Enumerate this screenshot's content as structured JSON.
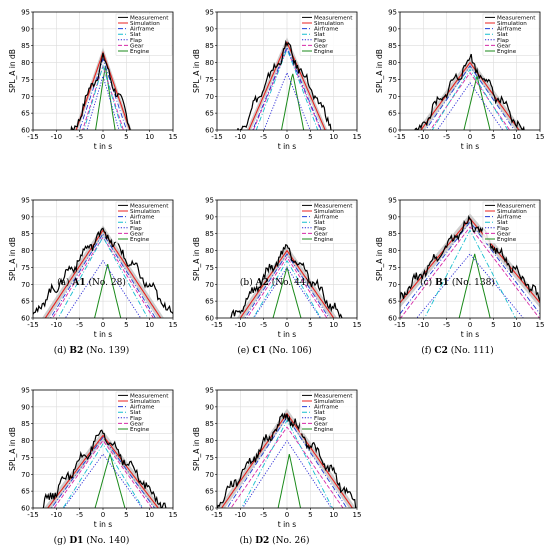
{
  "legend": {
    "entries": [
      {
        "name": "Measurement",
        "color": "#000000",
        "dash": "solid"
      },
      {
        "name": "Simulation",
        "color": "#e8221f",
        "dash": "solid"
      },
      {
        "name": "Airframe",
        "color": "#1f3fd6",
        "dash": "dashdot"
      },
      {
        "name": "Slat",
        "color": "#17becf",
        "dash": "dashdot"
      },
      {
        "name": "Flap",
        "color": "#2b2bd6",
        "dash": "dotted"
      },
      {
        "name": "Gear",
        "color": "#d62aa8",
        "dash": "dashed"
      },
      {
        "name": "Engine",
        "color": "#1a8a1a",
        "dash": "solid"
      }
    ],
    "placement": "top-right"
  },
  "band_color": "#bdbdbd",
  "axes_common": {
    "xlabel": "t in s",
    "ylabel": "SPL_A in dB",
    "xlim": [
      -15,
      15
    ],
    "ylim": [
      60,
      95
    ],
    "xticks": [
      -15,
      -10,
      -5,
      0,
      5,
      10,
      15
    ],
    "yticks": [
      60,
      65,
      70,
      75,
      80,
      85,
      90,
      95
    ],
    "grid": true
  },
  "chart_data": [
    {
      "type": "line",
      "panel": "(a)",
      "id": "A1",
      "caption_rest": "(No. 28)",
      "peaks": {
        "Measurement": 81.0,
        "Simulation": 83.0,
        "Airframe": 81.0,
        "Slat": 79.0,
        "Flap": 76.0,
        "Gear": 79.0,
        "Engine": 79.0
      },
      "halfwidth": {
        "Measurement": 6.0,
        "Simulation": 5.0,
        "Airframe": 4.8,
        "Slat": 4.3,
        "Flap": 4.3,
        "Gear": 4.6,
        "Engine": 2.2
      },
      "center": {
        "Measurement": 0,
        "Simulation": 0,
        "Airframe": 0,
        "Slat": 0,
        "Flap": 0,
        "Gear": 0,
        "Engine": 0.5
      }
    },
    {
      "type": "line",
      "panel": "(b)",
      "id": "A2",
      "caption_rest": "(No. 44)",
      "peaks": {
        "Measurement": 85.0,
        "Simulation": 86.0,
        "Airframe": 84.5,
        "Slat": 84.0,
        "Flap": 77.0,
        "Gear": 84.0,
        "Engine": 77.0
      },
      "halfwidth": {
        "Measurement": 8.0,
        "Simulation": 6.3,
        "Airframe": 6.0,
        "Slat": 5.5,
        "Flap": 5.8,
        "Gear": 6.0,
        "Engine": 2.8
      },
      "center": {
        "Measurement": 0,
        "Simulation": 0,
        "Airframe": 0,
        "Slat": 0,
        "Flap": 0,
        "Gear": 0,
        "Engine": 1.2
      }
    },
    {
      "type": "line",
      "panel": "(c)",
      "id": "B1",
      "caption_rest": "(No. 138)",
      "peaks": {
        "Measurement": 81.0,
        "Simulation": 80.0,
        "Airframe": 79.0,
        "Slat": 78.0,
        "Flap": 74.0,
        "Gear": 77.0,
        "Engine": 76.0
      },
      "halfwidth": {
        "Measurement": 10.5,
        "Simulation": 10.5,
        "Airframe": 10.0,
        "Slat": 9.0,
        "Flap": 10.0,
        "Gear": 10.0,
        "Engine": 3.5
      },
      "center": {
        "Measurement": 0,
        "Simulation": 0,
        "Airframe": 0,
        "Slat": 0,
        "Flap": 0,
        "Gear": 0,
        "Engine": 1.5
      }
    },
    {
      "type": "line",
      "panel": "(d)",
      "id": "B2",
      "caption_rest": "(No. 139)",
      "peaks": {
        "Measurement": 86.0,
        "Simulation": 86.0,
        "Airframe": 85.0,
        "Slat": 84.0,
        "Flap": 77.0,
        "Gear": 84.0,
        "Engine": 76.0
      },
      "halfwidth": {
        "Measurement": 12.0,
        "Simulation": 9.5,
        "Airframe": 9.0,
        "Slat": 8.0,
        "Flap": 9.5,
        "Gear": 9.0,
        "Engine": 3.5
      },
      "center": {
        "Measurement": 0,
        "Simulation": 0,
        "Airframe": 0,
        "Slat": 0,
        "Flap": 0,
        "Gear": 0,
        "Engine": 1.0
      }
    },
    {
      "type": "line",
      "panel": "(e)",
      "id": "C1",
      "caption_rest": "(No. 106)",
      "peaks": {
        "Measurement": 81.0,
        "Simulation": 80.0,
        "Airframe": 79.0,
        "Slat": 77.0,
        "Flap": 75.0,
        "Gear": 78.0,
        "Engine": 75.0
      },
      "halfwidth": {
        "Measurement": 11.0,
        "Simulation": 10.0,
        "Airframe": 9.5,
        "Slat": 8.5,
        "Flap": 9.5,
        "Gear": 9.5,
        "Engine": 4.0
      },
      "center": {
        "Measurement": 0,
        "Simulation": 0,
        "Airframe": 0,
        "Slat": 0,
        "Flap": 0,
        "Gear": 0,
        "Engine": 0
      }
    },
    {
      "type": "line",
      "panel": "(f)",
      "id": "C2",
      "caption_rest": "(No. 111)",
      "peaks": {
        "Measurement": 89.0,
        "Simulation": 89.5,
        "Airframe": 88.5,
        "Slat": 86.0,
        "Flap": 79.0,
        "Gear": 87.0,
        "Engine": 79.0
      },
      "halfwidth": {
        "Measurement": 13.0,
        "Simulation": 12.0,
        "Airframe": 11.0,
        "Slat": 7.5,
        "Flap": 12.0,
        "Gear": 11.0,
        "Engine": 3.5
      },
      "center": {
        "Measurement": 0,
        "Simulation": 0,
        "Airframe": 0,
        "Slat": 0,
        "Flap": 0,
        "Gear": 0,
        "Engine": 1.0
      }
    },
    {
      "type": "line",
      "panel": "(g)",
      "id": "D1",
      "caption_rest": "(No. 140)",
      "peaks": {
        "Measurement": 82.0,
        "Simulation": 81.5,
        "Airframe": 81.0,
        "Slat": 79.0,
        "Flap": 76.0,
        "Gear": 80.0,
        "Engine": 76.0
      },
      "halfwidth": {
        "Measurement": 12.0,
        "Simulation": 11.0,
        "Airframe": 10.5,
        "Slat": 9.0,
        "Flap": 10.5,
        "Gear": 10.5,
        "Engine": 4.0
      },
      "center": {
        "Measurement": 0,
        "Simulation": 0,
        "Airframe": 0,
        "Slat": 0,
        "Flap": 0,
        "Gear": 0,
        "Engine": 1.5
      }
    },
    {
      "type": "line",
      "panel": "(h)",
      "id": "D2",
      "caption_rest": "(No. 26)",
      "peaks": {
        "Measurement": 88.0,
        "Simulation": 88.0,
        "Airframe": 87.0,
        "Slat": 86.0,
        "Flap": 80.0,
        "Gear": 84.0,
        "Engine": 76.0
      },
      "halfwidth": {
        "Measurement": 11.0,
        "Simulation": 10.0,
        "Airframe": 9.5,
        "Slat": 7.5,
        "Flap": 9.5,
        "Gear": 10.0,
        "Engine": 3.0
      },
      "center": {
        "Measurement": 0,
        "Simulation": 0,
        "Airframe": 0,
        "Slat": 0,
        "Flap": 0,
        "Gear": 0,
        "Engine": 0.5
      }
    }
  ]
}
